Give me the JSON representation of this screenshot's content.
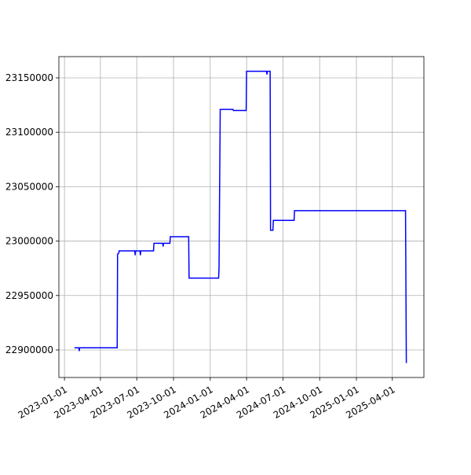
{
  "chart_data": {
    "type": "line",
    "x": [
      "2023-01-26",
      "2023-02-06",
      "2023-02-07",
      "2023-02-08",
      "2023-05-13",
      "2023-05-14",
      "2023-05-17",
      "2023-05-18",
      "2023-06-26",
      "2023-06-27",
      "2023-06-28",
      "2023-07-09",
      "2023-07-10",
      "2023-07-11",
      "2023-08-12",
      "2023-08-13",
      "2023-09-04",
      "2023-09-05",
      "2023-09-06",
      "2023-09-22",
      "2023-09-23",
      "2023-11-08",
      "2023-11-09",
      "2024-01-22",
      "2024-01-23",
      "2024-01-26",
      "2024-02-27",
      "2024-02-28",
      "2024-03-31",
      "2024-04-01",
      "2024-05-21",
      "2024-05-22",
      "2024-05-23",
      "2024-05-30",
      "2024-05-31",
      "2024-06-06",
      "2024-06-07",
      "2024-07-29",
      "2024-07-30",
      "2025-05-04",
      "2025-05-06"
    ],
    "series": [
      {
        "color": "#0000ff",
        "values": [
          22902000,
          22902000,
          22899000,
          22902000,
          22902000,
          22988000,
          22989000,
          22991000,
          22991000,
          22987000,
          22991000,
          22991000,
          22987000,
          22991000,
          22991000,
          22998000,
          22998000,
          22995000,
          22998000,
          22998000,
          23004000,
          23004000,
          22966000,
          22966000,
          22975000,
          23121000,
          23121000,
          23120000,
          23120000,
          23156000,
          23156000,
          23153000,
          23156000,
          23156000,
          23010000,
          23010000,
          23019000,
          23019000,
          23028000,
          23028000,
          22888000
        ]
      }
    ],
    "xlim": [
      "2022-12-18",
      "2025-06-19"
    ],
    "xticks": [
      "2023-01-01",
      "2023-04-01",
      "2023-07-01",
      "2023-10-01",
      "2024-01-01",
      "2024-04-01",
      "2024-07-01",
      "2024-10-01",
      "2025-01-01",
      "2025-04-01"
    ],
    "ylim": [
      22874700,
      23169500
    ],
    "yticks": [
      22900000,
      22950000,
      23000000,
      23050000,
      23100000,
      23150000
    ],
    "grid": true
  }
}
